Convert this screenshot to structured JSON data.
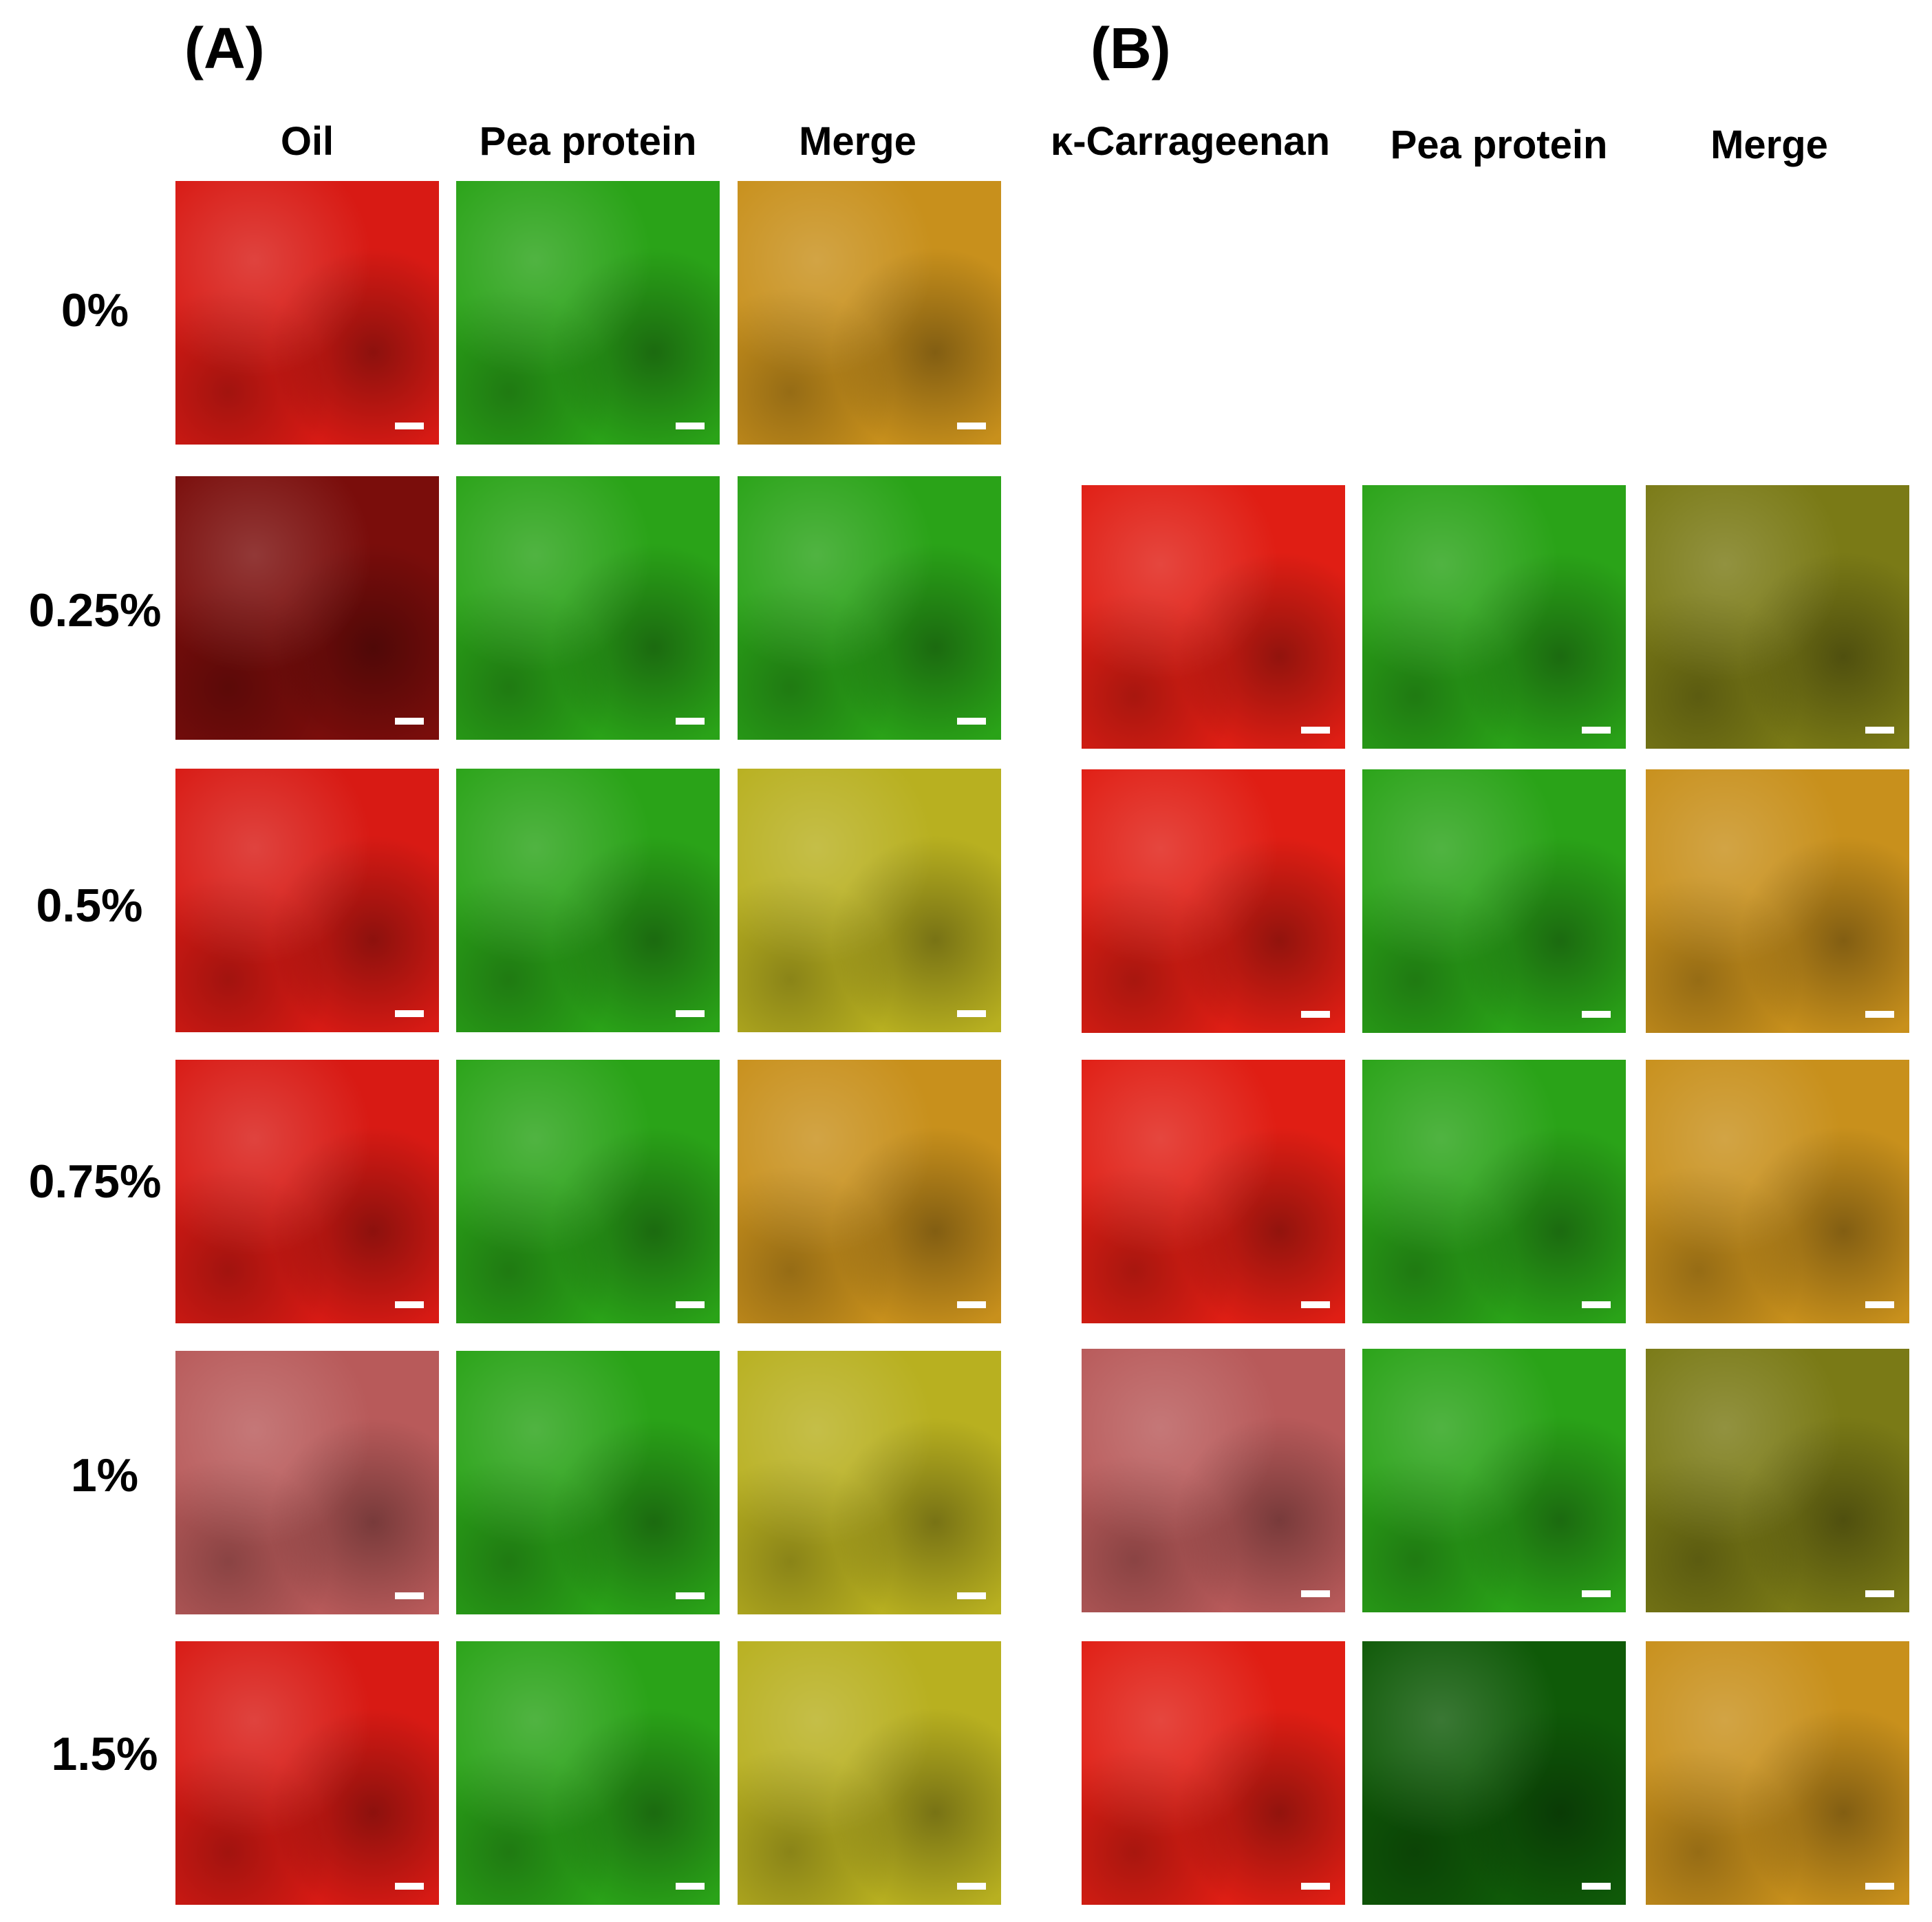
{
  "panels": {
    "A": {
      "letter": "(A)",
      "columns": [
        "Oil",
        "Pea protein",
        "Merge"
      ]
    },
    "B": {
      "letter": "(B)",
      "columns": [
        "κ-Carrageenan",
        "Pea protein",
        "Merge"
      ]
    }
  },
  "rows": [
    "0%",
    "0.25%",
    "0.5%",
    "0.75%",
    "1%",
    "1.5%"
  ],
  "colors": {
    "oil_red": "#d81a14",
    "oil_dark": "#7a0d0b",
    "oil_pink": "#b85a5a",
    "protein_green": "#2aa318",
    "protein_dark": "#0f5a08",
    "merge_orange": "#c8901c",
    "merge_yellow": "#b8b020",
    "merge_olive": "#7a7a16",
    "carrageenan_red": "#e01e14"
  }
}
